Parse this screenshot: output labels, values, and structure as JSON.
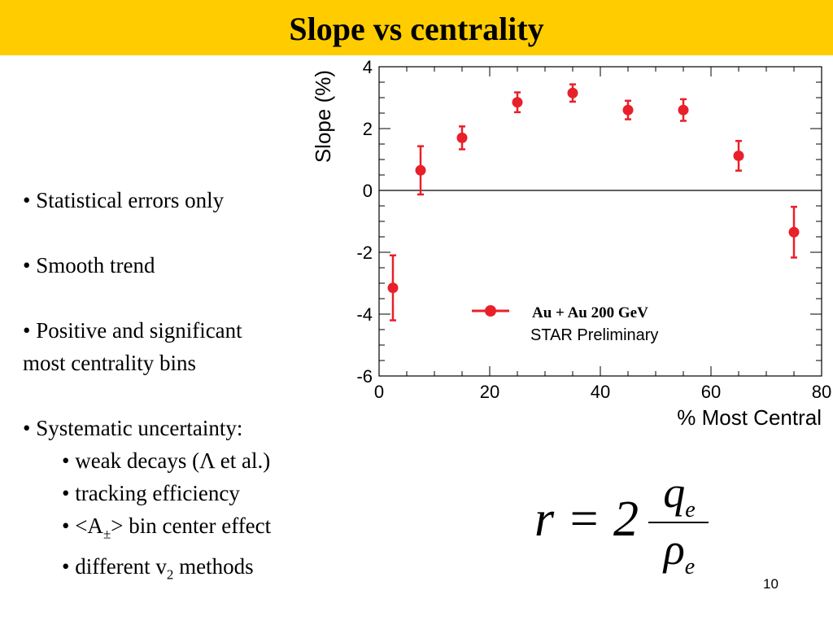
{
  "slide": {
    "title": "Slope vs centrality",
    "page_number": "10",
    "accent_color": "#ffcc00"
  },
  "bullets": {
    "b1": "• Statistical errors only",
    "b2": "• Smooth trend",
    "b3_line1": "• Positive and significant",
    "b3_line2": "most centrality bins",
    "b4": "• Systematic uncertainty:",
    "sub1": "• weak decays (Λ et al.)",
    "sub2": "• tracking efficiency",
    "sub3_pre": "• <A",
    "sub3_subscript": "±",
    "sub3_post": "> bin center effect",
    "sub4_pre": "• different v",
    "sub4_subscript": "2",
    "sub4_post": " methods"
  },
  "formula": {
    "lhs": "r = 2",
    "numerator": "q",
    "numerator_subscript": "e",
    "denominator": "ρ",
    "denominator_subscript": "e"
  },
  "chart_data": {
    "type": "scatter",
    "title": "",
    "xlabel": "% Most Central",
    "ylabel": "Slope (%)",
    "xlim": [
      0,
      80
    ],
    "ylim": [
      -6,
      4
    ],
    "x_ticks": [
      0,
      20,
      40,
      60,
      80
    ],
    "y_ticks": [
      -6,
      -4,
      -2,
      0,
      2,
      4
    ],
    "grid": false,
    "zero_line": true,
    "legend_position": "lower-right",
    "legend_lines": [
      "Au + Au 200 GeV",
      "STAR Preliminary"
    ],
    "series": [
      {
        "name": "Au + Au 200 GeV",
        "color": "#e8202a",
        "x": [
          2.5,
          7.5,
          15,
          25,
          35,
          45,
          55,
          65,
          75
        ],
        "y": [
          -3.15,
          0.65,
          1.7,
          2.85,
          3.15,
          2.6,
          2.6,
          1.12,
          -1.35
        ],
        "y_err": [
          1.05,
          0.78,
          0.37,
          0.32,
          0.28,
          0.3,
          0.35,
          0.48,
          0.82
        ]
      }
    ]
  }
}
